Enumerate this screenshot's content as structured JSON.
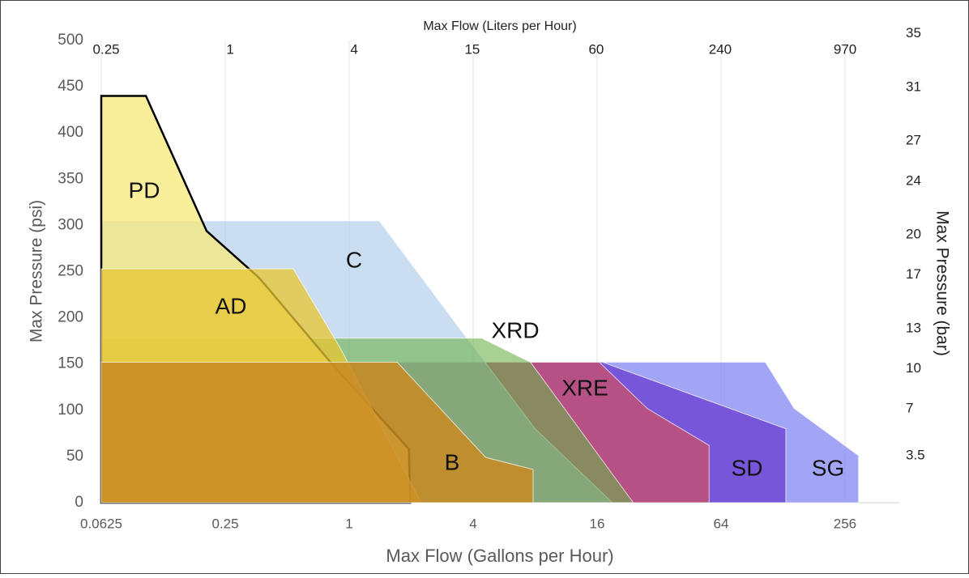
{
  "chart_data": {
    "type": "area",
    "x_label": "Max Flow (Gallons per Hour)",
    "x2_label": "Max Flow (Liters per Hour)",
    "y_label": "Max Pressure (psi)",
    "y2_label": "Max Pressure (bar)",
    "xscale": "log",
    "xlim": [
      0.0625,
      470
    ],
    "xticks": [
      0.0625,
      0.25,
      1,
      4,
      16,
      64,
      256
    ],
    "x2lim": [
      0.2366,
      1779
    ],
    "x2ticks": [
      0.25,
      1,
      4,
      15,
      60,
      240,
      970
    ],
    "ylim": [
      0,
      500
    ],
    "yticks": [
      0,
      50,
      100,
      150,
      200,
      250,
      300,
      350,
      400,
      450,
      500
    ],
    "y2lim": [
      0,
      34.5
    ],
    "y2ticks": [
      3.5,
      7,
      10,
      13,
      17,
      20,
      24,
      27,
      31,
      35
    ],
    "grid": "x",
    "series": [
      {
        "name": "SG",
        "color": "#7b7df2",
        "x": [
          0.0625,
          0.0625,
          105,
          145,
          298,
          298
        ],
        "values": [
          0,
          152,
          152,
          102,
          51,
          0
        ]
      },
      {
        "name": "SD",
        "color": "#6a3ccf",
        "x": [
          0.0625,
          0.0625,
          17,
          132,
          132
        ],
        "values": [
          0,
          152,
          152,
          80,
          0
        ]
      },
      {
        "name": "XRE",
        "color": "#c4506e",
        "x": [
          0.0625,
          0.0625,
          16.4,
          28,
          56,
          56
        ],
        "values": [
          0,
          152,
          152,
          102,
          62,
          0
        ]
      },
      {
        "name": "C",
        "color": "#a9c8e8",
        "x": [
          0.0625,
          0.0625,
          1.4,
          3.4,
          8,
          19
        ],
        "values": [
          0,
          305,
          305,
          190,
          80,
          0
        ]
      },
      {
        "name": "XRD",
        "color": "#6db04a",
        "x": [
          0.0625,
          0.0625,
          4.4,
          7.6,
          24
        ],
        "values": [
          0,
          178,
          178,
          152,
          0
        ]
      },
      {
        "name": "PD",
        "color": "#f7e97a",
        "stroke": "#000000",
        "x": [
          0.0625,
          0.0625,
          0.103,
          0.203,
          0.366,
          0.826,
          1.95,
          1.98
        ],
        "values": [
          0,
          440,
          440,
          294,
          243,
          150,
          58,
          0
        ]
      },
      {
        "name": "AD",
        "color": "#e8c531",
        "x": [
          0.0625,
          0.0625,
          0.535,
          0.906,
          2.24
        ],
        "values": [
          0,
          253,
          253,
          167,
          0
        ]
      },
      {
        "name": "B",
        "color": "#c98a22",
        "x": [
          0.0625,
          0.0625,
          1.71,
          4.6,
          7.82,
          7.82
        ],
        "values": [
          0,
          152,
          152,
          49,
          36,
          0
        ]
      }
    ]
  }
}
